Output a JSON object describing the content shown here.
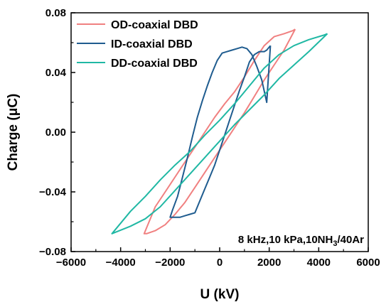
{
  "chart_data": {
    "type": "line",
    "xlabel": "U (kV)",
    "ylabel": "Charge (μC)",
    "xlim": [
      -6000,
      6000
    ],
    "ylim": [
      -0.08,
      0.08
    ],
    "x_ticks": [
      -6000,
      -4000,
      -2000,
      0,
      2000,
      4000,
      6000
    ],
    "x_tick_labels": [
      "−6000",
      "−4000",
      "−2000",
      "0",
      "2000",
      "4000",
      "6000"
    ],
    "y_ticks": [
      -0.08,
      -0.04,
      0.0,
      0.04,
      0.08
    ],
    "y_tick_labels": [
      "−0.08",
      "−0.04",
      "0.00",
      "0.04",
      "0.08"
    ],
    "grid": false,
    "legend_position": "top-left",
    "annotation": {
      "prefix": "8 kHz,10 kPa,10NH",
      "subscript": "3",
      "suffix": "/40Ar"
    },
    "series": [
      {
        "name": "OD-coaxial DBD",
        "color": "#F08080",
        "x": [
          3050,
          2950,
          2600,
          2200,
          1800,
          1400,
          1000,
          600,
          200,
          -200,
          -600,
          -1000,
          -1400,
          -1800,
          -2200,
          -2600,
          -3050,
          -2950,
          -2600,
          -2200,
          -1800,
          -1400,
          -1000,
          -600,
          -200,
          200,
          600,
          1000,
          1400,
          1800,
          2200,
          2600,
          3050
        ],
        "y": [
          0.069,
          0.068,
          0.066,
          0.064,
          0.058,
          0.048,
          0.037,
          0.027,
          0.019,
          0.01,
          0.0,
          -0.01,
          -0.02,
          -0.03,
          -0.04,
          -0.05,
          -0.068,
          -0.068,
          -0.066,
          -0.062,
          -0.055,
          -0.047,
          -0.037,
          -0.027,
          -0.017,
          -0.007,
          0.003,
          0.013,
          0.024,
          0.035,
          0.045,
          0.055,
          0.069
        ]
      },
      {
        "name": "ID-coaxial DBD",
        "color": "#1F5C8F",
        "x": [
          2050,
          1900,
          1800,
          1600,
          1400,
          1200,
          1000,
          800,
          600,
          400,
          200,
          0,
          -200,
          -400,
          -600,
          -800,
          -1000,
          -1200,
          -1400,
          -1600,
          -1800,
          -2000,
          -1900,
          -1700,
          -1500,
          -1300,
          -1100,
          -900,
          -700,
          -500,
          -300,
          -100,
          100,
          300,
          500,
          700,
          900,
          1100,
          1300,
          1500,
          1700,
          1900,
          2050
        ],
        "y": [
          0.058,
          0.055,
          0.054,
          0.054,
          0.052,
          0.047,
          0.037,
          0.028,
          0.018,
          0.008,
          -0.002,
          -0.012,
          -0.022,
          -0.03,
          -0.038,
          -0.046,
          -0.054,
          -0.055,
          -0.056,
          -0.057,
          -0.057,
          -0.057,
          -0.052,
          -0.043,
          -0.03,
          -0.017,
          -0.003,
          0.01,
          0.021,
          0.031,
          0.04,
          0.048,
          0.053,
          0.054,
          0.055,
          0.056,
          0.057,
          0.056,
          0.052,
          0.044,
          0.035,
          0.02,
          0.058
        ]
      },
      {
        "name": "DD-coaxial DBD",
        "color": "#20B8A4",
        "x": [
          4350,
          4200,
          3600,
          3000,
          2400,
          1800,
          1200,
          600,
          0,
          -600,
          -1200,
          -1800,
          -2400,
          -3000,
          -3600,
          -4350,
          -4200,
          -3600,
          -3000,
          -2400,
          -1800,
          -1200,
          -600,
          0,
          600,
          1200,
          1800,
          2400,
          3000,
          3600,
          4350
        ],
        "y": [
          0.066,
          0.065,
          0.062,
          0.058,
          0.052,
          0.043,
          0.031,
          0.019,
          0.008,
          -0.002,
          -0.013,
          -0.022,
          -0.032,
          -0.043,
          -0.053,
          -0.068,
          -0.067,
          -0.063,
          -0.058,
          -0.05,
          -0.039,
          -0.028,
          -0.017,
          -0.006,
          0.005,
          0.015,
          0.025,
          0.036,
          0.045,
          0.054,
          0.066
        ]
      }
    ]
  }
}
